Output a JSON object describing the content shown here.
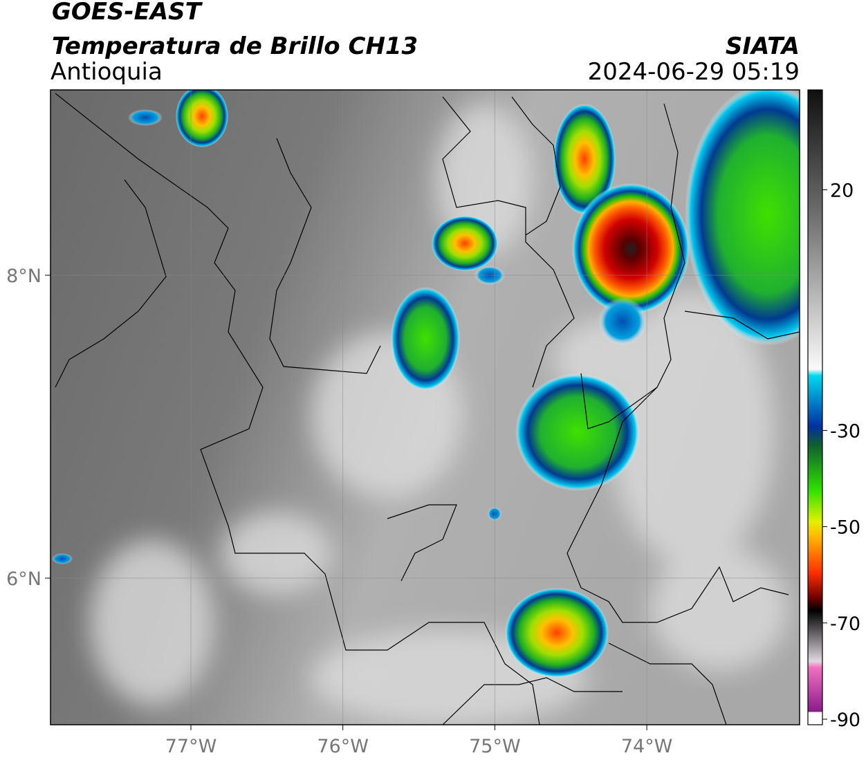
{
  "header": {
    "satellite": "GOES-EAST",
    "product": "Temperatura de Brillo CH13",
    "region": "Antioquia",
    "source": "SIATA",
    "timestamp": "2024-06-29 05:19"
  },
  "map": {
    "longitudes": [
      {
        "value": -77,
        "label": "77°W"
      },
      {
        "value": -76,
        "label": "76°W"
      },
      {
        "value": -75,
        "label": "75°W"
      },
      {
        "value": -74,
        "label": "74°W"
      }
    ],
    "latitudes": [
      {
        "value": 8,
        "label": "8°N"
      },
      {
        "value": 6,
        "label": "6°N"
      }
    ]
  },
  "colorbar": {
    "ticks": [
      20,
      -30,
      -50,
      -70,
      -90
    ]
  }
}
